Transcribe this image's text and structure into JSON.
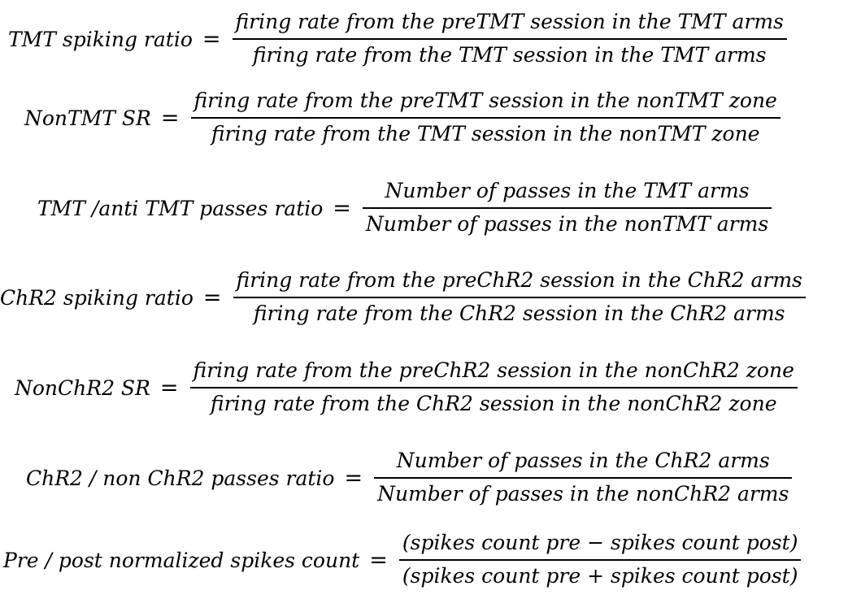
{
  "equations": [
    {
      "lhs": "TMT spiking ratio",
      "equals": "=",
      "numerator": "firing rate from the preTMT session in the TMT arms",
      "denominator": "firing rate from the TMT session in the TMT arms"
    },
    {
      "lhs": "NonTMT SR",
      "equals": "=",
      "numerator": "firing rate from the preTMT session in the nonTMT zone",
      "denominator": "firing rate from the TMT session in the nonTMT zone"
    },
    {
      "lhs": "TMT /anti TMT passes ratio",
      "equals": "=",
      "numerator": "Number of passes in the TMT arms",
      "denominator": "Number of passes in the nonTMT arms"
    },
    {
      "lhs": "ChR2 spiking ratio",
      "equals": "=",
      "numerator": "firing rate from the preChR2 session in the ChR2 arms",
      "denominator": "firing rate from the ChR2 session in the ChR2 arms"
    },
    {
      "lhs": "NonChR2 SR",
      "equals": "=",
      "numerator": "firing rate from the preChR2 session in the nonChR2 zone",
      "denominator": "firing rate from the ChR2 session in the nonChR2 zone"
    },
    {
      "lhs": "ChR2 / non ChR2 passes ratio",
      "equals": "=",
      "numerator": "Number of passes in the ChR2 arms",
      "denominator": "Number of passes in the nonChR2 arms"
    },
    {
      "lhs": "Pre / post normalized spikes count",
      "equals": "=",
      "numerator": "(spikes count pre − spikes count post)",
      "denominator": "(spikes count pre + spikes count post)"
    }
  ]
}
